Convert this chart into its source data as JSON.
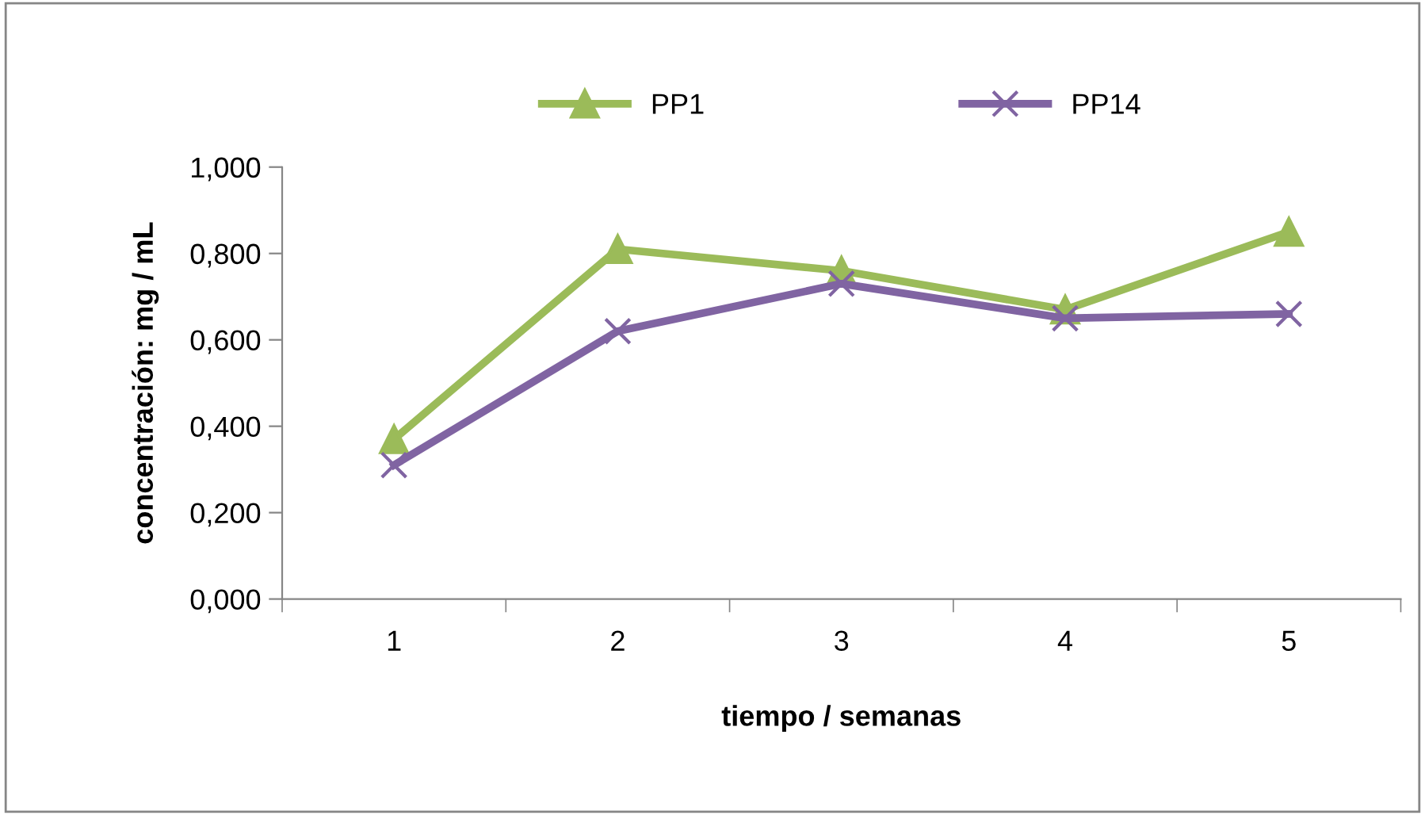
{
  "chart_data": {
    "type": "line",
    "xlabel": "tiempo / semanas",
    "ylabel": "concentración: mg / mL",
    "categories": [
      "1",
      "2",
      "3",
      "4",
      "5"
    ],
    "series": [
      {
        "name": "PP1",
        "color": "#9bbb59",
        "marker": "triangle",
        "values": [
          0.37,
          0.81,
          0.76,
          0.67,
          0.85
        ]
      },
      {
        "name": "PP14",
        "color": "#8064a2",
        "marker": "cross",
        "values": [
          0.31,
          0.62,
          0.73,
          0.65,
          0.66
        ]
      }
    ],
    "ylim": [
      0,
      1
    ],
    "yticks": [
      {
        "value": 0,
        "label": "0,000"
      },
      {
        "value": 0.2,
        "label": "0,200"
      },
      {
        "value": 0.4,
        "label": "0,400"
      },
      {
        "value": 0.6,
        "label": "0,600"
      },
      {
        "value": 0.8,
        "label": "0,800"
      },
      {
        "value": 1,
        "label": "1,000"
      }
    ],
    "grid": false,
    "legend": "top",
    "line_style": "solid"
  }
}
